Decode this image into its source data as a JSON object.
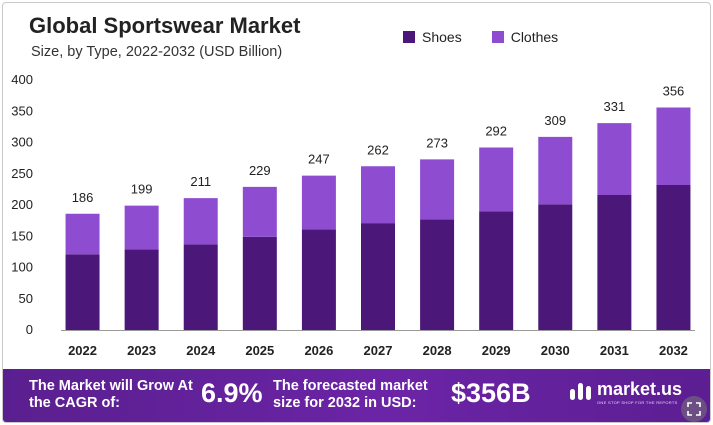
{
  "chart_data": {
    "type": "bar",
    "stacked": true,
    "title": "Global Sportswear Market",
    "subtitle": "Size, by Type, 2022-2032 (USD Billion)",
    "categories": [
      "2022",
      "2023",
      "2024",
      "2025",
      "2026",
      "2027",
      "2028",
      "2029",
      "2030",
      "2031",
      "2032"
    ],
    "series": [
      {
        "name": "Shoes",
        "color": "#4b1778",
        "values": [
          121,
          129,
          137,
          149,
          161,
          171,
          177,
          190,
          201,
          216,
          232
        ]
      },
      {
        "name": "Clothes",
        "color": "#8e4dd0",
        "values": [
          65,
          70,
          74,
          80,
          86,
          91,
          96,
          102,
          108,
          115,
          124
        ]
      }
    ],
    "totals": [
      186,
      199,
      211,
      229,
      247,
      262,
      273,
      292,
      309,
      331,
      356
    ],
    "ylim": [
      0,
      400
    ],
    "yticks": [
      0,
      50,
      100,
      150,
      200,
      250,
      300,
      350,
      400
    ],
    "xlabel": "",
    "ylabel": "",
    "legend_position": "top-right",
    "grid": false
  },
  "banner": {
    "grow_label": "The Market will Grow At the CAGR of:",
    "cagr": "6.9%",
    "forecast_label": "The forecasted market size for 2032 in USD:",
    "forecast_value": "$356B",
    "logo_text": "market.us",
    "logo_tagline": "ONE STOP SHOP FOR THE REPORTS"
  },
  "colors": {
    "banner": "#5a1f8f",
    "shoes": "#4b1778",
    "clothes": "#8e4dd0"
  }
}
